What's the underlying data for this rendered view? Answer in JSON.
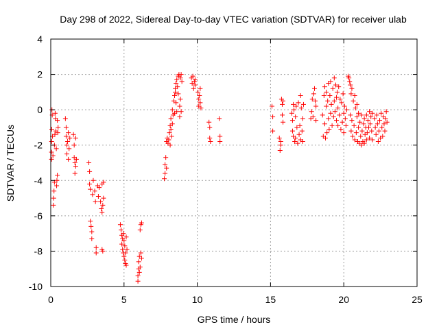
{
  "chart_data": {
    "type": "scatter",
    "title": "Day 298 of 2022, Sidereal Day-to-day VTEC variation (SDTVAR) for receiver ulab",
    "xlabel": "GPS time / hours",
    "ylabel": "SDTVAR / TECUs",
    "xlim": [
      0,
      25
    ],
    "ylim": [
      -10,
      4
    ],
    "xticks": [
      0,
      5,
      10,
      15,
      20,
      25
    ],
    "yticks": [
      -10,
      -8,
      -6,
      -4,
      -2,
      0,
      2,
      4
    ],
    "grid": true,
    "marker": "plus",
    "color": "#ff0000",
    "series": [
      {
        "name": "SDTVAR",
        "points": [
          [
            0.05,
            -2.8
          ],
          [
            0.05,
            -2.4
          ],
          [
            0.06,
            -1.8
          ],
          [
            0.07,
            -1.1
          ],
          [
            0.08,
            0.0
          ],
          [
            0.1,
            -0.3
          ],
          [
            0.12,
            -1.5
          ],
          [
            0.15,
            -2.6
          ],
          [
            0.18,
            -5.4
          ],
          [
            0.2,
            -5.0
          ],
          [
            0.22,
            -4.6
          ],
          [
            0.25,
            -4.1
          ],
          [
            0.25,
            -2.0
          ],
          [
            0.28,
            -1.4
          ],
          [
            0.3,
            -0.2
          ],
          [
            0.32,
            -0.5
          ],
          [
            0.35,
            -1.2
          ],
          [
            0.38,
            -2.2
          ],
          [
            0.4,
            -4.3
          ],
          [
            0.42,
            -4.0
          ],
          [
            0.45,
            -3.7
          ],
          [
            0.45,
            -0.6
          ],
          [
            0.48,
            -1.3
          ],
          [
            0.5,
            -1.0
          ],
          [
            1.0,
            -0.5
          ],
          [
            1.05,
            -1.0
          ],
          [
            1.05,
            -1.5
          ],
          [
            1.1,
            -2.0
          ],
          [
            1.1,
            -2.5
          ],
          [
            1.15,
            -1.8
          ],
          [
            1.2,
            -2.8
          ],
          [
            1.2,
            -1.3
          ],
          [
            1.25,
            -2.2
          ],
          [
            1.3,
            -1.6
          ],
          [
            1.55,
            -1.4
          ],
          [
            1.6,
            -2.0
          ],
          [
            1.6,
            -2.7
          ],
          [
            1.65,
            -3.0
          ],
          [
            1.65,
            -3.6
          ],
          [
            1.7,
            -3.2
          ],
          [
            1.7,
            -1.6
          ],
          [
            1.75,
            -2.8
          ],
          [
            2.6,
            -3.0
          ],
          [
            2.65,
            -3.5
          ],
          [
            2.65,
            -4.2
          ],
          [
            2.7,
            -4.5
          ],
          [
            2.7,
            -6.3
          ],
          [
            2.75,
            -6.6
          ],
          [
            2.8,
            -6.9
          ],
          [
            2.8,
            -7.3
          ],
          [
            2.85,
            -4.8
          ],
          [
            2.9,
            -4.0
          ],
          [
            3.0,
            -4.6
          ],
          [
            3.05,
            -5.2
          ],
          [
            3.1,
            -7.8
          ],
          [
            3.1,
            -8.1
          ],
          [
            3.2,
            -4.3
          ],
          [
            3.25,
            -4.9
          ],
          [
            3.3,
            -4.4
          ],
          [
            3.4,
            -5.2
          ],
          [
            3.45,
            -5.6
          ],
          [
            3.5,
            -5.8
          ],
          [
            3.55,
            -5.4
          ],
          [
            3.6,
            -5.0
          ],
          [
            3.5,
            -7.9
          ],
          [
            3.55,
            -8.0
          ],
          [
            3.5,
            -4.2
          ],
          [
            3.6,
            -4.1
          ],
          [
            4.75,
            -6.5
          ],
          [
            4.8,
            -6.8
          ],
          [
            4.85,
            -7.1
          ],
          [
            4.85,
            -7.6
          ],
          [
            4.9,
            -7.3
          ],
          [
            4.9,
            -7.9
          ],
          [
            4.95,
            -8.1
          ],
          [
            4.95,
            -7.0
          ],
          [
            5.0,
            -7.4
          ],
          [
            5.0,
            -8.3
          ],
          [
            5.05,
            -7.7
          ],
          [
            5.05,
            -8.5
          ],
          [
            5.1,
            -8.1
          ],
          [
            5.1,
            -8.7
          ],
          [
            5.15,
            -7.2
          ],
          [
            5.15,
            -8.8
          ],
          [
            5.2,
            -7.9
          ],
          [
            5.95,
            -9.4
          ],
          [
            5.95,
            -9.7
          ],
          [
            6.0,
            -8.6
          ],
          [
            6.0,
            -9.0
          ],
          [
            6.05,
            -9.2
          ],
          [
            6.05,
            -8.3
          ],
          [
            6.1,
            -8.9
          ],
          [
            6.1,
            -6.8
          ],
          [
            6.15,
            -6.5
          ],
          [
            6.15,
            -8.1
          ],
          [
            6.2,
            -6.4
          ],
          [
            6.2,
            -8.4
          ],
          [
            7.75,
            -3.9
          ],
          [
            7.8,
            -3.6
          ],
          [
            7.8,
            -3.1
          ],
          [
            7.85,
            -2.7
          ],
          [
            7.9,
            -3.3
          ],
          [
            7.9,
            -1.8
          ],
          [
            7.95,
            -1.6
          ],
          [
            8.0,
            -1.9
          ],
          [
            8.05,
            -1.7
          ],
          [
            8.1,
            -1.3
          ],
          [
            8.15,
            -2.0
          ],
          [
            8.15,
            -0.9
          ],
          [
            8.2,
            -1.1
          ],
          [
            8.2,
            -0.5
          ],
          [
            8.25,
            -1.5
          ],
          [
            8.3,
            -0.8
          ],
          [
            8.3,
            0.0
          ],
          [
            8.35,
            -0.3
          ],
          [
            8.4,
            0.5
          ],
          [
            8.45,
            0.8
          ],
          [
            8.45,
            -0.2
          ],
          [
            8.5,
            1.0
          ],
          [
            8.5,
            1.2
          ],
          [
            8.55,
            0.4
          ],
          [
            8.55,
            1.5
          ],
          [
            8.6,
            -0.1
          ],
          [
            8.6,
            1.7
          ],
          [
            8.65,
            1.3
          ],
          [
            8.7,
            1.9
          ],
          [
            8.7,
            0.9
          ],
          [
            8.75,
            2.0
          ],
          [
            8.8,
            0.2
          ],
          [
            8.8,
            -0.4
          ],
          [
            8.85,
            1.8
          ],
          [
            8.85,
            0.6
          ],
          [
            8.9,
            2.0
          ],
          [
            8.9,
            -0.1
          ],
          [
            8.95,
            1.6
          ],
          [
            9.6,
            1.8
          ],
          [
            9.65,
            1.5
          ],
          [
            9.7,
            1.9
          ],
          [
            9.75,
            1.2
          ],
          [
            9.8,
            1.6
          ],
          [
            9.85,
            1.4
          ],
          [
            9.85,
            1.7
          ],
          [
            10.05,
            1.0
          ],
          [
            10.1,
            0.6
          ],
          [
            10.1,
            0.2
          ],
          [
            10.15,
            0.8
          ],
          [
            10.2,
            0.4
          ],
          [
            10.2,
            1.2
          ],
          [
            10.25,
            0.1
          ],
          [
            10.8,
            -0.7
          ],
          [
            10.85,
            -1.0
          ],
          [
            10.85,
            -1.6
          ],
          [
            10.9,
            -1.8
          ],
          [
            11.5,
            -0.5
          ],
          [
            11.55,
            -1.5
          ],
          [
            11.55,
            -1.8
          ],
          [
            15.1,
            0.2
          ],
          [
            15.15,
            -0.4
          ],
          [
            15.15,
            -1.2
          ],
          [
            15.6,
            -1.6
          ],
          [
            15.65,
            -2.3
          ],
          [
            15.7,
            -2.0
          ],
          [
            15.7,
            -1.8
          ],
          [
            15.75,
            0.6
          ],
          [
            15.8,
            0.3
          ],
          [
            15.8,
            -0.3
          ],
          [
            15.85,
            -0.7
          ],
          [
            15.85,
            0.5
          ],
          [
            16.45,
            -0.2
          ],
          [
            16.5,
            -1.2
          ],
          [
            16.5,
            -0.6
          ],
          [
            16.55,
            -1.5
          ],
          [
            16.55,
            0.3
          ],
          [
            16.6,
            0.0
          ],
          [
            16.65,
            -1.8
          ],
          [
            16.7,
            -0.4
          ],
          [
            16.7,
            -1.6
          ],
          [
            16.75,
            0.2
          ],
          [
            16.8,
            -1.0
          ],
          [
            16.85,
            -1.9
          ],
          [
            16.9,
            0.4
          ],
          [
            16.95,
            -1.4
          ],
          [
            17.0,
            -0.9
          ],
          [
            17.05,
            0.8
          ],
          [
            17.05,
            -1.7
          ],
          [
            17.1,
            0.1
          ],
          [
            17.15,
            -1.2
          ],
          [
            17.2,
            -0.5
          ],
          [
            17.2,
            -1.8
          ],
          [
            17.25,
            0.3
          ],
          [
            17.75,
            -0.5
          ],
          [
            17.8,
            -0.1
          ],
          [
            17.85,
            0.6
          ],
          [
            17.9,
            -0.4
          ],
          [
            17.95,
            0.9
          ],
          [
            18.0,
            1.2
          ],
          [
            18.05,
            0.5
          ],
          [
            18.1,
            0.2
          ],
          [
            18.1,
            -0.6
          ],
          [
            18.55,
            -0.3
          ],
          [
            18.6,
            -1.5
          ],
          [
            18.65,
            0.8
          ],
          [
            18.7,
            1.3
          ],
          [
            18.7,
            -0.8
          ],
          [
            18.75,
            -1.6
          ],
          [
            18.8,
            0.2
          ],
          [
            18.8,
            1.0
          ],
          [
            18.85,
            -1.3
          ],
          [
            18.9,
            0.5
          ],
          [
            18.95,
            1.5
          ],
          [
            18.95,
            -0.5
          ],
          [
            19.0,
            -1.1
          ],
          [
            19.05,
            0.8
          ],
          [
            19.1,
            1.6
          ],
          [
            19.1,
            -0.2
          ],
          [
            19.15,
            0.3
          ],
          [
            19.2,
            -0.9
          ],
          [
            19.25,
            1.2
          ],
          [
            19.3,
            -0.4
          ],
          [
            19.35,
            1.8
          ],
          [
            19.35,
            0.5
          ],
          [
            19.4,
            -0.1
          ],
          [
            19.45,
            1.4
          ],
          [
            19.5,
            0.7
          ],
          [
            19.5,
            -0.6
          ],
          [
            19.55,
            1.0
          ],
          [
            19.6,
            0.1
          ],
          [
            19.6,
            -0.9
          ],
          [
            19.65,
            1.3
          ],
          [
            19.7,
            -0.3
          ],
          [
            19.75,
            0.6
          ],
          [
            19.8,
            -1.1
          ],
          [
            19.85,
            0.4
          ],
          [
            19.9,
            -0.7
          ],
          [
            19.95,
            0.9
          ],
          [
            20.0,
            -0.2
          ],
          [
            20.0,
            -1.3
          ],
          [
            20.05,
            0.2
          ],
          [
            20.1,
            -0.5
          ],
          [
            20.15,
            -0.9
          ],
          [
            20.2,
            0.0
          ],
          [
            20.3,
            1.9
          ],
          [
            20.35,
            1.8
          ],
          [
            20.4,
            1.6
          ],
          [
            20.45,
            1.4
          ],
          [
            20.45,
            -0.3
          ],
          [
            20.5,
            0.9
          ],
          [
            20.5,
            -1.2
          ],
          [
            20.55,
            1.2
          ],
          [
            20.55,
            -0.6
          ],
          [
            20.6,
            -1.5
          ],
          [
            20.65,
            0.5
          ],
          [
            20.7,
            -0.9
          ],
          [
            20.75,
            -1.7
          ],
          [
            20.75,
            0.8
          ],
          [
            20.8,
            0.1
          ],
          [
            20.85,
            -1.3
          ],
          [
            20.9,
            0.3
          ],
          [
            20.9,
            -0.4
          ],
          [
            20.95,
            -1.8
          ],
          [
            21.0,
            -0.2
          ],
          [
            21.0,
            -1.0
          ],
          [
            21.05,
            -1.9
          ],
          [
            21.1,
            -0.7
          ],
          [
            21.15,
            -1.5
          ],
          [
            21.2,
            -2.0
          ],
          [
            21.2,
            -0.3
          ],
          [
            21.25,
            -1.2
          ],
          [
            21.3,
            -1.8
          ],
          [
            21.35,
            -0.8
          ],
          [
            21.4,
            -0.5
          ],
          [
            21.4,
            -1.9
          ],
          [
            21.45,
            -1.4
          ],
          [
            21.5,
            -1.0
          ],
          [
            21.55,
            -0.3
          ],
          [
            21.55,
            -1.7
          ],
          [
            21.6,
            -1.3
          ],
          [
            21.65,
            -0.6
          ],
          [
            21.7,
            -1.0
          ],
          [
            21.75,
            -0.1
          ],
          [
            21.75,
            -1.6
          ],
          [
            21.8,
            -0.8
          ],
          [
            21.85,
            -0.4
          ],
          [
            21.9,
            -1.2
          ],
          [
            21.95,
            -0.2
          ],
          [
            21.95,
            -1.7
          ],
          [
            22.1,
            -0.5
          ],
          [
            22.15,
            -1.0
          ],
          [
            22.2,
            -1.4
          ],
          [
            22.25,
            -0.3
          ],
          [
            22.3,
            -0.8
          ],
          [
            22.35,
            -1.8
          ],
          [
            22.4,
            -1.2
          ],
          [
            22.45,
            -0.6
          ],
          [
            22.5,
            -1.6
          ],
          [
            22.55,
            -0.2
          ],
          [
            22.6,
            -1.0
          ],
          [
            22.65,
            -1.5
          ],
          [
            22.7,
            -0.4
          ],
          [
            22.75,
            -0.8
          ],
          [
            22.8,
            -1.2
          ],
          [
            22.85,
            -0.5
          ],
          [
            22.9,
            -0.1
          ],
          [
            22.95,
            -0.7
          ]
        ]
      }
    ]
  }
}
